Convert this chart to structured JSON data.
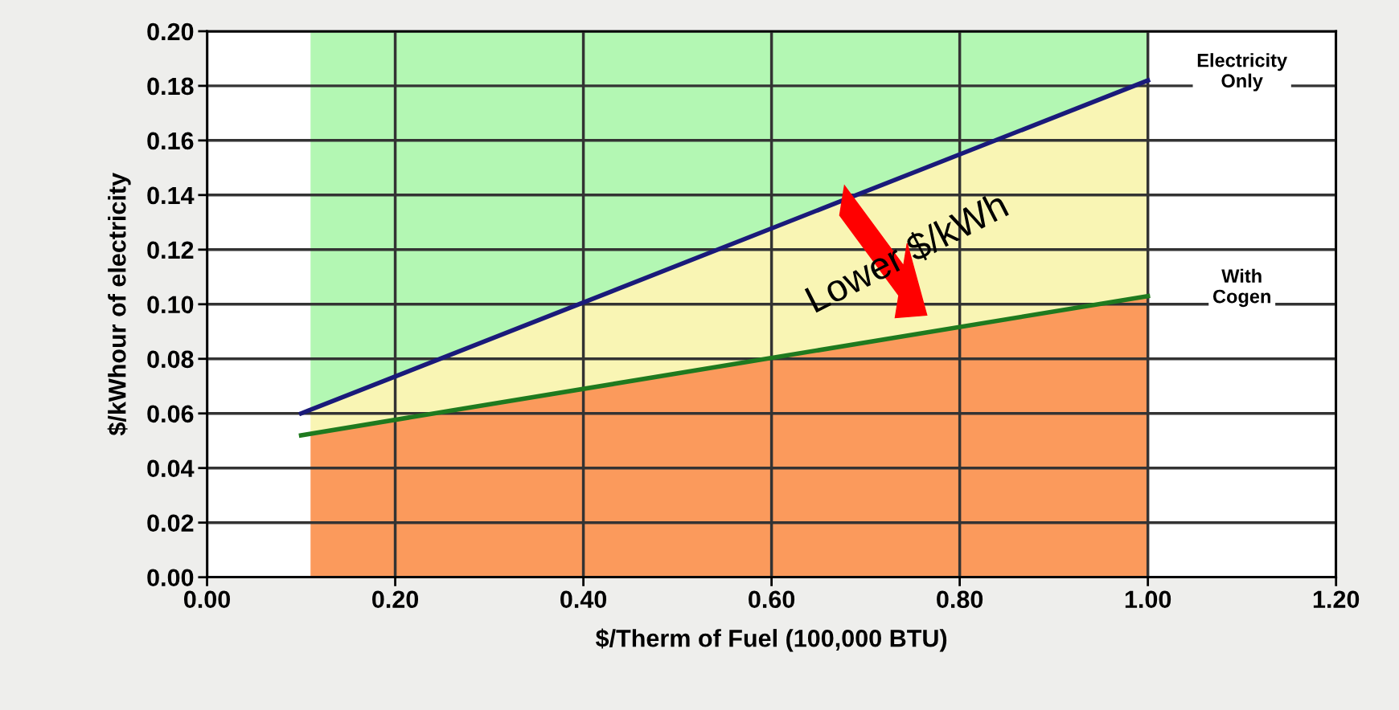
{
  "chart_data": {
    "type": "line",
    "xlabel": "$/Therm of Fuel (100,000 BTU)",
    "ylabel": "$/kWhour of electricity",
    "series": [
      {
        "type": "area",
        "color": "#fb9a5c",
        "x": [
          0.11,
          1.0
        ],
        "values": [
          0.0526,
          0.103
        ]
      },
      {
        "type": "area",
        "color": "#f9f5b4",
        "x": [
          0.11,
          1.0
        ],
        "values": [
          0.0088,
          0.079
        ]
      },
      {
        "type": "area",
        "color": "#b3f7b3",
        "x": [
          0.11,
          1.0
        ],
        "values": [
          0.1386,
          0.018
        ]
      },
      {
        "color": "#1a1a7a",
        "x": [
          0.1,
          1.0
        ],
        "values": [
          0.06,
          0.182
        ]
      },
      {
        "color": "#1f7a1f",
        "x": [
          0.1,
          1.0
        ],
        "values": [
          0.052,
          0.103
        ]
      }
    ],
    "annotations": [
      "Electricity\nOnly",
      "With\nCogen",
      "Lower $/kWh"
    ],
    "stacked": true,
    "xlim": [
      0,
      1.2
    ],
    "ylim": [
      0,
      0.2
    ],
    "xticks": [
      {
        "value": 0,
        "label": "0.00"
      },
      {
        "value": 0.2,
        "label": "0.20"
      },
      {
        "value": 0.4,
        "label": "0.40"
      },
      {
        "value": 0.6,
        "label": "0.60"
      },
      {
        "value": 0.8,
        "label": "0.80"
      },
      {
        "value": 1.0,
        "label": "1.00"
      },
      {
        "value": 1.2,
        "label": "1.20"
      }
    ],
    "yticks": [
      {
        "value": 0,
        "label": "0.00"
      },
      {
        "value": 0.02,
        "label": "0.02"
      },
      {
        "value": 0.04,
        "label": "0.04"
      },
      {
        "value": 0.06,
        "label": "0.06"
      },
      {
        "value": 0.08,
        "label": "0.08"
      },
      {
        "value": 0.1,
        "label": "0.10"
      },
      {
        "value": 0.12,
        "label": "0.12"
      },
      {
        "value": 0.14,
        "label": "0.14"
      },
      {
        "value": 0.16,
        "label": "0.16"
      },
      {
        "value": 0.18,
        "label": "0.18"
      },
      {
        "value": 0.2,
        "label": "0.20"
      }
    ],
    "grid": true,
    "marker": "none",
    "line_style": "solid"
  }
}
